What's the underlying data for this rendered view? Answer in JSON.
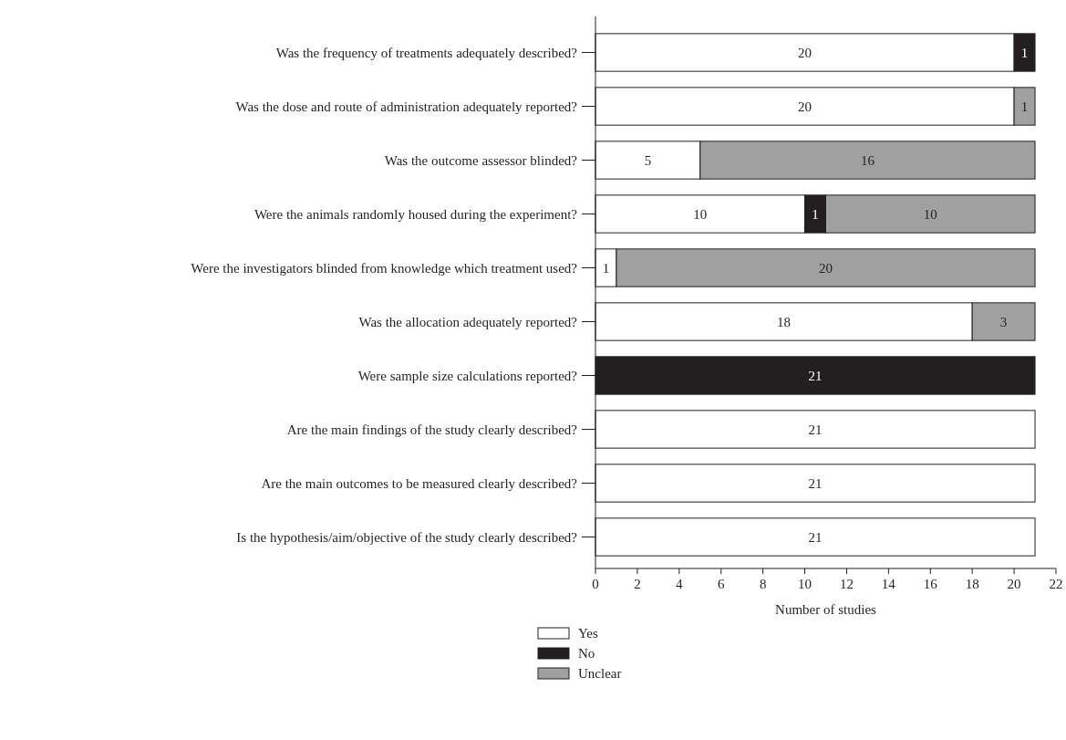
{
  "chart_data": {
    "type": "bar",
    "orientation": "horizontal",
    "stacked": true,
    "data_labels": true,
    "legend": "bottom",
    "grid": false,
    "xlabel": "Number of studies",
    "categories": [
      "Was the frequency of treatments adequately described?",
      "Was the dose and route of administration adequately reported?",
      "Was the outcome assessor blinded?",
      "Were the animals randomly housed during the experiment?",
      "Were the investigators blinded from knowledge which treatment used?",
      "Was the allocation adequately reported?",
      "Were sample size calculations reported?",
      "Are the main findings of the study clearly described?",
      "Are the main outcomes to be measured clearly described?",
      "Is the hypothesis/aim/objective of the study clearly described?"
    ],
    "xlim": [
      0,
      22
    ],
    "xticks": [
      0,
      2,
      4,
      6,
      8,
      10,
      12,
      14,
      16,
      18,
      20,
      22
    ],
    "series": [
      {
        "name": "Yes",
        "color": "#ffffff",
        "values": [
          20,
          20,
          5,
          10,
          1,
          18,
          null,
          21,
          21,
          21
        ]
      },
      {
        "name": "No",
        "color": "#231f20",
        "values": [
          1,
          null,
          null,
          1,
          null,
          null,
          21,
          null,
          null,
          null
        ]
      },
      {
        "name": "Unclear",
        "color": "#a0a0a0",
        "values": [
          null,
          1,
          16,
          10,
          20,
          3,
          null,
          null,
          null,
          null
        ]
      }
    ]
  }
}
